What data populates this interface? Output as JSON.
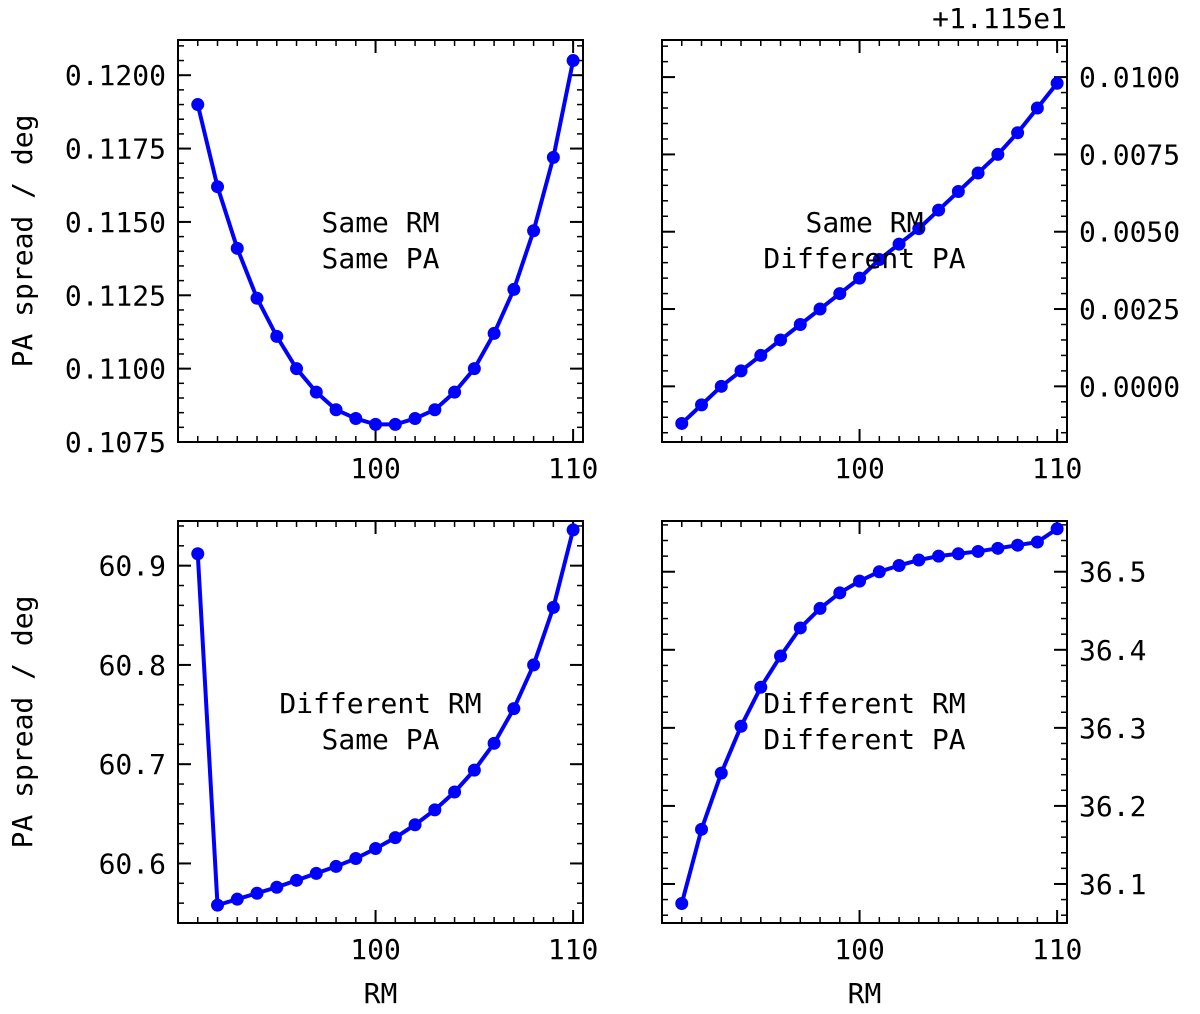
{
  "chart_data": [
    {
      "type": "line",
      "panel": "top-left",
      "annotation": [
        "Same RM",
        "Same PA"
      ],
      "xlabel": "",
      "ylabel": "PA spread / deg",
      "offset_text": "",
      "xlim": [
        90,
        110.5
      ],
      "ylim": [
        0.1075,
        0.1212
      ],
      "y_axis_side": "left",
      "x_ticks": [
        {
          "value": 100,
          "label": "100"
        },
        {
          "value": 110,
          "label": "110"
        }
      ],
      "y_ticks": [
        {
          "value": 0.1075,
          "label": "0.1075"
        },
        {
          "value": 0.11,
          "label": "0.1100"
        },
        {
          "value": 0.1125,
          "label": "0.1125"
        },
        {
          "value": 0.115,
          "label": "0.1150"
        },
        {
          "value": 0.1175,
          "label": "0.1175"
        },
        {
          "value": 0.12,
          "label": "0.1200"
        }
      ],
      "x": [
        91,
        92,
        93,
        94,
        95,
        96,
        97,
        98,
        99,
        100,
        101,
        102,
        103,
        104,
        105,
        106,
        107,
        108,
        109,
        110
      ],
      "y": [
        0.119,
        0.1162,
        0.1141,
        0.1124,
        0.1111,
        0.11,
        0.1092,
        0.1086,
        0.1083,
        0.1081,
        0.1081,
        0.1083,
        0.1086,
        0.1092,
        0.11,
        0.1112,
        0.1127,
        0.1147,
        0.1172,
        0.1205
      ],
      "color": "#0000ff"
    },
    {
      "type": "line",
      "panel": "top-right",
      "annotation": [
        "Same RM",
        "Different PA"
      ],
      "xlabel": "",
      "ylabel": "",
      "offset_text": "+1.115e1",
      "xlim": [
        90,
        110.5
      ],
      "ylim": [
        -0.0018,
        0.0112
      ],
      "y_axis_side": "right",
      "x_ticks": [
        {
          "value": 100,
          "label": "100"
        },
        {
          "value": 110,
          "label": "110"
        }
      ],
      "y_ticks": [
        {
          "value": 0.0,
          "label": "0.0000"
        },
        {
          "value": 0.0025,
          "label": "0.0025"
        },
        {
          "value": 0.005,
          "label": "0.0050"
        },
        {
          "value": 0.0075,
          "label": "0.0075"
        },
        {
          "value": 0.01,
          "label": "0.0100"
        }
      ],
      "x": [
        91,
        92,
        93,
        94,
        95,
        96,
        97,
        98,
        99,
        100,
        101,
        102,
        103,
        104,
        105,
        106,
        107,
        108,
        109,
        110
      ],
      "y": [
        -0.0012,
        -0.0006,
        0.0,
        0.0005,
        0.001,
        0.0015,
        0.002,
        0.0025,
        0.003,
        0.0035,
        0.0041,
        0.0046,
        0.0051,
        0.0057,
        0.0063,
        0.0069,
        0.0075,
        0.0082,
        0.009,
        0.0098
      ],
      "color": "#0000ff"
    },
    {
      "type": "line",
      "panel": "bottom-left",
      "annotation": [
        "Different RM",
        "Same PA"
      ],
      "xlabel": "RM",
      "ylabel": "PA spread / deg",
      "offset_text": "",
      "xlim": [
        90,
        110.5
      ],
      "ylim": [
        60.54,
        60.945
      ],
      "y_axis_side": "left",
      "x_ticks": [
        {
          "value": 100,
          "label": "100"
        },
        {
          "value": 110,
          "label": "110"
        }
      ],
      "y_ticks": [
        {
          "value": 60.6,
          "label": "60.6"
        },
        {
          "value": 60.7,
          "label": "60.7"
        },
        {
          "value": 60.8,
          "label": "60.8"
        },
        {
          "value": 60.9,
          "label": "60.9"
        }
      ],
      "x": [
        91,
        92,
        93,
        94,
        95,
        96,
        97,
        98,
        99,
        100,
        101,
        102,
        103,
        104,
        105,
        106,
        107,
        108,
        109,
        110
      ],
      "y": [
        60.912,
        60.558,
        60.564,
        60.57,
        60.576,
        60.583,
        60.59,
        60.597,
        60.605,
        60.615,
        60.626,
        60.639,
        60.654,
        60.672,
        60.694,
        60.721,
        60.756,
        60.8,
        60.858,
        60.936
      ],
      "color": "#0000ff"
    },
    {
      "type": "line",
      "panel": "bottom-right",
      "annotation": [
        "Different RM",
        "Different PA"
      ],
      "xlabel": "RM",
      "ylabel": "",
      "offset_text": "",
      "xlim": [
        90,
        110.5
      ],
      "ylim": [
        36.05,
        36.565
      ],
      "y_axis_side": "right",
      "x_ticks": [
        {
          "value": 100,
          "label": "100"
        },
        {
          "value": 110,
          "label": "110"
        }
      ],
      "y_ticks": [
        {
          "value": 36.1,
          "label": "36.1"
        },
        {
          "value": 36.2,
          "label": "36.2"
        },
        {
          "value": 36.3,
          "label": "36.3"
        },
        {
          "value": 36.4,
          "label": "36.4"
        },
        {
          "value": 36.5,
          "label": "36.5"
        }
      ],
      "x": [
        91,
        92,
        93,
        94,
        95,
        96,
        97,
        98,
        99,
        100,
        101,
        102,
        103,
        104,
        105,
        106,
        107,
        108,
        109,
        110
      ],
      "y": [
        36.075,
        36.17,
        36.242,
        36.302,
        36.352,
        36.392,
        36.428,
        36.453,
        36.473,
        36.488,
        36.5,
        36.508,
        36.515,
        36.52,
        36.523,
        36.526,
        36.53,
        36.534,
        36.538,
        36.555
      ],
      "color": "#0000ff"
    }
  ]
}
